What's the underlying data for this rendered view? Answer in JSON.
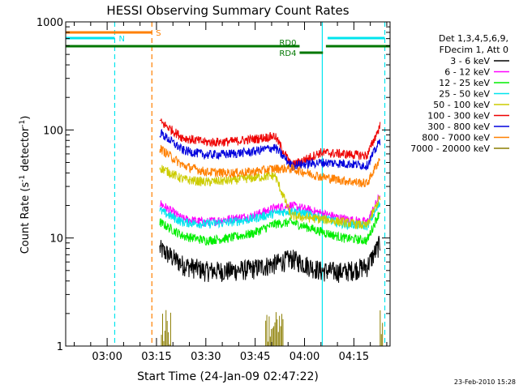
{
  "chart_data": {
    "type": "line",
    "title": "HESSI Observing Summary Count Rates",
    "xlabel": "Start Time (24-Jan-09 02:47:22)",
    "ylabel_main": "Count Rate (s",
    "ylabel_sup1": "-1",
    "ylabel_mid": " detector",
    "ylabel_sup2": "-1",
    "ylabel_end": ")",
    "yscale": "log",
    "xlim_min": [
      167.4,
      266
    ],
    "ylim": [
      1,
      1000
    ],
    "x_ticks": [
      {
        "m": 180,
        "label": "03:00"
      },
      {
        "m": 195,
        "label": "03:15"
      },
      {
        "m": 210,
        "label": "03:30"
      },
      {
        "m": 225,
        "label": "03:45"
      },
      {
        "m": 240,
        "label": "04:00"
      },
      {
        "m": 255,
        "label": "04:15"
      }
    ],
    "y_ticks": [
      {
        "v": 1,
        "label": "1"
      },
      {
        "v": 10,
        "label": "10"
      },
      {
        "v": 100,
        "label": "100"
      },
      {
        "v": 1000,
        "label": "1000"
      }
    ],
    "legend": {
      "placement": "right",
      "header1": "Det 1,3,4,5,6,9,",
      "header2": "FDecim 1, Att 0",
      "entries": [
        {
          "label": "3 - 6 keV",
          "color": "#000000"
        },
        {
          "label": "6 - 12 keV",
          "color": "#ff00ff"
        },
        {
          "label": "12 - 25 keV",
          "color": "#00ee00"
        },
        {
          "label": "25 - 50 keV",
          "color": "#00e5ee"
        },
        {
          "label": "50 - 100 keV",
          "color": "#cccc00"
        },
        {
          "label": "100 - 300 keV",
          "color": "#ee0000"
        },
        {
          "label": "300 - 800 keV",
          "color": "#0000dd"
        },
        {
          "label": "800 - 7000 keV",
          "color": "#ff8000"
        },
        {
          "label": "7000 - 20000 keV",
          "color": "#8b7d00"
        }
      ]
    },
    "series_base": [
      {
        "name": "3 - 6 keV",
        "color": "#000000",
        "v": [
          8.0,
          5.7,
          5.0,
          5.0,
          5.2,
          5.8,
          6.5,
          5.0,
          4.9,
          5.5,
          9.0
        ]
      },
      {
        "name": "6 - 12 keV",
        "color": "#ff00ff",
        "v": [
          21,
          15,
          14,
          15,
          16,
          19,
          20,
          17,
          15,
          14,
          25
        ]
      },
      {
        "name": "12 - 25 keV",
        "color": "#00ee00",
        "v": [
          14,
          10.5,
          9.5,
          10,
          11,
          13.5,
          14,
          11.5,
          10,
          9.5,
          18
        ]
      },
      {
        "name": "25 - 50 keV",
        "color": "#00e5ee",
        "v": [
          18,
          14,
          13.5,
          14,
          15,
          17,
          18,
          15.5,
          13.5,
          13,
          21
        ]
      },
      {
        "name": "50 - 100 keV",
        "color": "#cccc00",
        "v": [
          45,
          35,
          33,
          34,
          36,
          38,
          16,
          15,
          14,
          13,
          24
        ]
      },
      {
        "name": "100 - 300 keV",
        "color": "#ee0000",
        "v": [
          120,
          85,
          77,
          78,
          82,
          88,
          47,
          62,
          60,
          58,
          110
        ]
      },
      {
        "name": "300 - 800 keV",
        "color": "#0000dd",
        "v": [
          95,
          65,
          59,
          60,
          63,
          69,
          47,
          50,
          49,
          47,
          80
        ]
      },
      {
        "name": "800 - 7000 keV",
        "color": "#ff8000",
        "v": [
          68,
          47,
          41,
          40,
          41,
          44,
          44,
          37,
          34,
          32,
          55
        ]
      }
    ],
    "series_x": [
      196,
      203,
      210,
      217,
      224,
      231,
      236,
      245,
      252,
      259,
      263
    ],
    "vlines": [
      {
        "m": 182.3,
        "color": "#00e5ee",
        "dash": true
      },
      {
        "m": 193.6,
        "color": "#ff8000",
        "dash": true
      },
      {
        "m": 245.4,
        "color": "#00e5ee",
        "dash": false
      },
      {
        "m": 264.4,
        "color": "#00e5ee",
        "dash": true
      }
    ],
    "flag_bars": [
      {
        "m0": 167.5,
        "m1": 193.6,
        "y": 40,
        "color": "#ff8000",
        "label": "S",
        "label_color": "#ff8000"
      },
      {
        "m0": 167.5,
        "m1": 182.3,
        "y": 47,
        "color": "#00e5ee",
        "label": "N",
        "label_color": "#00e5ee"
      },
      {
        "m0": 247.0,
        "m1": 264.4,
        "y": 47,
        "color": "#00e5ee",
        "label": "",
        "label_color": "#00e5ee"
      },
      {
        "m0": 167.5,
        "m1": 238.5,
        "y": 57,
        "color": "#007700",
        "label": "RD0",
        "label_color": "#007700"
      },
      {
        "m0": 238.5,
        "m1": 245.6,
        "y": 65,
        "color": "#007700",
        "label": "RD4",
        "label_color": "#007700"
      },
      {
        "m0": 246.5,
        "m1": 266.0,
        "y": 57,
        "color": "#007700",
        "label": "",
        "label_color": "#007700"
      }
    ],
    "footer_date": "23-Feb-2010 15:28"
  }
}
